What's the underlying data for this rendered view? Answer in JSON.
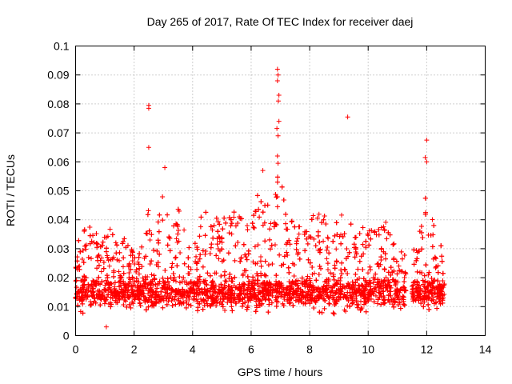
{
  "chart_data": {
    "type": "scatter",
    "title": "Day 265 of 2017, Rate Of TEC Index for receiver daej",
    "xlabel": "GPS time / hours",
    "ylabel": "ROTI / TECUs",
    "xlim": [
      0,
      14
    ],
    "ylim": [
      0,
      0.1
    ],
    "x_ticks": [
      "0",
      "2",
      "4",
      "6",
      "8",
      "10",
      "12",
      "14"
    ],
    "y_ticks": [
      "0",
      "0.01",
      "0.02",
      "0.03",
      "0.04",
      "0.05",
      "0.06",
      "0.07",
      "0.08",
      "0.09",
      "0.1"
    ],
    "grid": true,
    "marker": "plus",
    "color": "#ff0000",
    "x_range_observed": [
      0,
      12.6
    ],
    "gaps": [
      [
        11.3,
        11.5
      ]
    ],
    "peaks": [
      {
        "x": 2.5,
        "y": 0.0795
      },
      {
        "x": 2.5,
        "y": 0.0785
      },
      {
        "x": 2.5,
        "y": 0.065
      },
      {
        "x": 6.9,
        "y": 0.092
      },
      {
        "x": 6.92,
        "y": 0.09
      },
      {
        "x": 6.9,
        "y": 0.088
      },
      {
        "x": 6.95,
        "y": 0.083
      },
      {
        "x": 6.93,
        "y": 0.081
      },
      {
        "x": 6.88,
        "y": 0.0715
      },
      {
        "x": 6.95,
        "y": 0.074
      },
      {
        "x": 6.92,
        "y": 0.069
      },
      {
        "x": 6.9,
        "y": 0.062
      },
      {
        "x": 6.92,
        "y": 0.0595
      },
      {
        "x": 9.3,
        "y": 0.0755
      },
      {
        "x": 12.0,
        "y": 0.0675
      },
      {
        "x": 11.95,
        "y": 0.0615
      },
      {
        "x": 12.0,
        "y": 0.06
      },
      {
        "x": 1.05,
        "y": 0.003
      },
      {
        "x": 3.05,
        "y": 0.058
      },
      {
        "x": 6.4,
        "y": 0.057
      }
    ]
  }
}
